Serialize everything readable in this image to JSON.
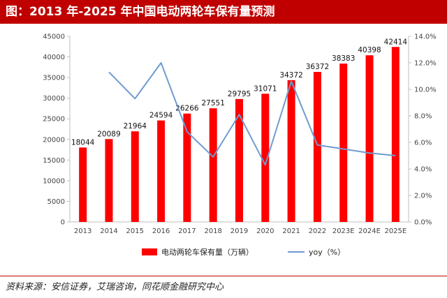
{
  "title": "图：2013 年-2025 年中国电动两轮车保有量预测",
  "source": "资料来源：安信证券，艾瑞咨询，同花顺金融研究中心",
  "colors": {
    "bar": "#ff0000",
    "line": "#6f9bd1",
    "title_bg": "#c00000",
    "grid": "#d9d9d9"
  },
  "chart_data": {
    "type": "bar",
    "title": "2013 年-2025 年中国电动两轮车保有量预测",
    "categories": [
      "2013",
      "2014",
      "2015",
      "2016",
      "2017",
      "2018",
      "2019",
      "2020",
      "2021",
      "2022",
      "2023E",
      "2024E",
      "2025E"
    ],
    "series": [
      {
        "name": "电动两轮车保有量（万辆）",
        "type": "bar",
        "axis": "left",
        "values": [
          18044,
          20089,
          21964,
          24594,
          26266,
          27551,
          29795,
          31071,
          34372,
          36372,
          38383,
          40398,
          42414
        ],
        "labels": [
          "18044",
          "20089",
          "21964",
          "24594",
          "26266",
          "27551",
          "29795",
          "31071",
          "34372",
          "36372",
          "38383",
          "40398",
          "42414"
        ]
      },
      {
        "name": "yoy（%）",
        "type": "line",
        "axis": "right",
        "values": [
          null,
          11.3,
          9.3,
          12.0,
          6.8,
          4.9,
          8.1,
          4.3,
          10.6,
          5.8,
          5.5,
          5.2,
          5.0
        ]
      }
    ],
    "y_left": {
      "ylim": [
        0,
        45000
      ],
      "ticks": [
        "0",
        "5000",
        "10000",
        "15000",
        "20000",
        "25000",
        "30000",
        "35000",
        "40000",
        "45000"
      ]
    },
    "y_right": {
      "ylim": [
        0,
        14
      ],
      "ticks": [
        "0.0%",
        "2.0%",
        "4.0%",
        "6.0%",
        "8.0%",
        "10.0%",
        "12.0%",
        "14.0%"
      ]
    },
    "legend": [
      "电动两轮车保有量（万辆）",
      "yoy（%）"
    ],
    "legend_position": "bottom",
    "grid": false
  }
}
